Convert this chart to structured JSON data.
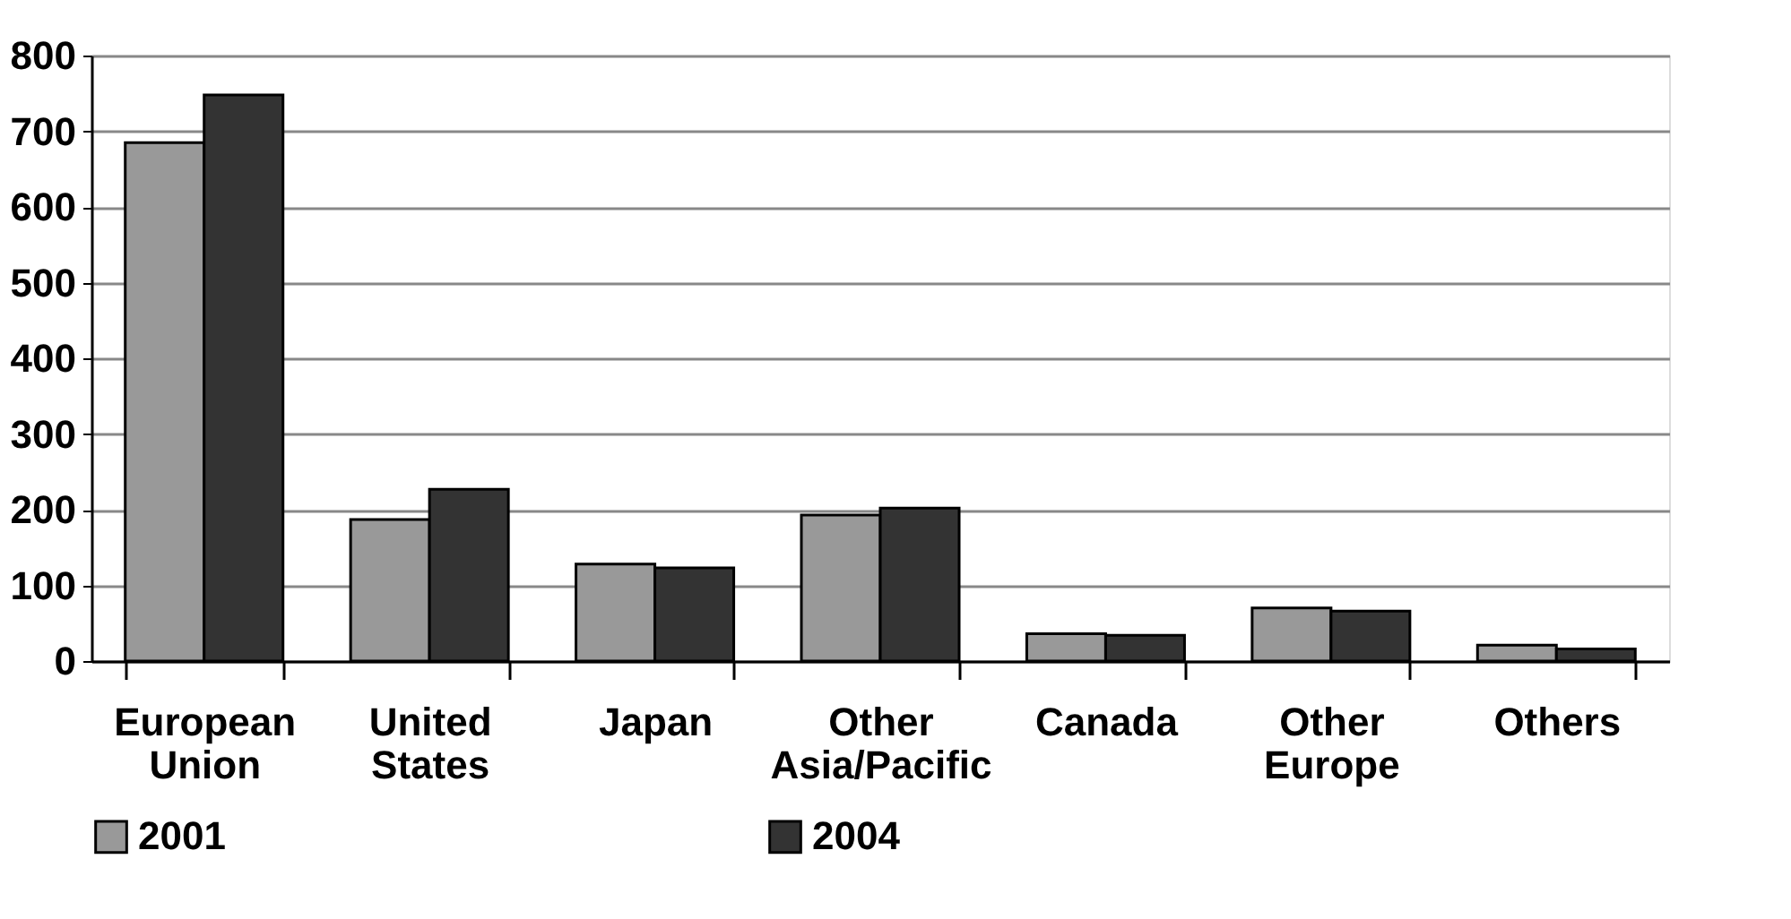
{
  "chart_data": {
    "type": "bar",
    "categories": [
      "European Union",
      "United States",
      "Japan",
      "Other Asia/Pacific",
      "Canada",
      "Other Europe",
      "Others"
    ],
    "series": [
      {
        "name": "2001",
        "color": "#999999",
        "values": [
          685,
          187,
          128,
          193,
          36,
          70,
          21
        ]
      },
      {
        "name": "2004",
        "color": "#333333",
        "values": [
          748,
          227,
          123,
          202,
          34,
          66,
          16
        ]
      }
    ],
    "ylim": [
      0,
      800
    ],
    "yticks": [
      0,
      100,
      200,
      300,
      400,
      500,
      600,
      700,
      800
    ],
    "grid": "y",
    "legend": "bottom"
  }
}
